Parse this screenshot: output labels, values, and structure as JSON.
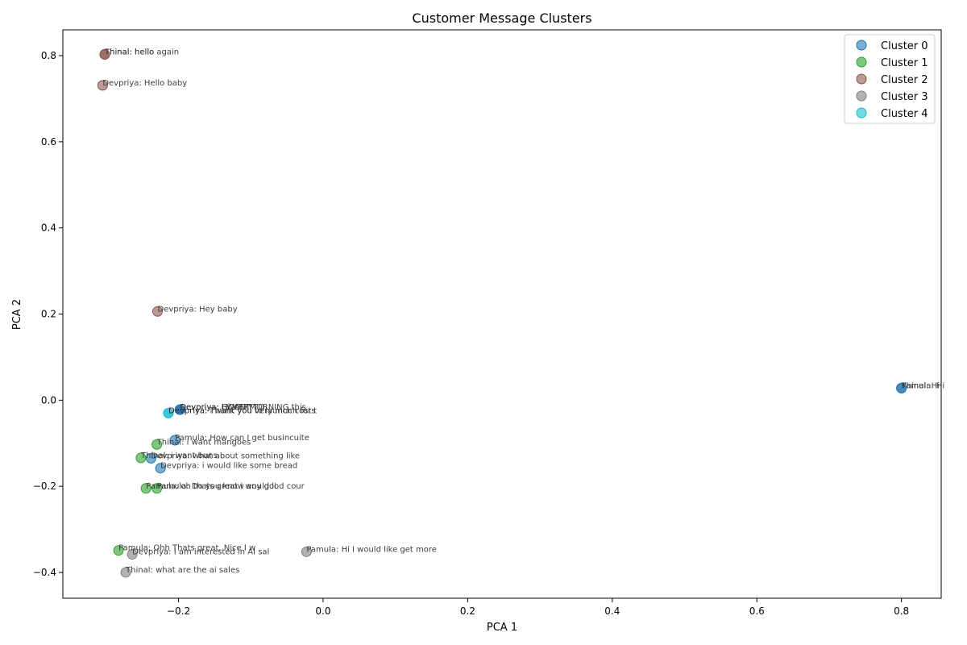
{
  "chart_data": {
    "type": "scatter",
    "title": "Customer Message Clusters",
    "xlabel": "PCA 1",
    "ylabel": "PCA 2",
    "xlim": [
      -0.36,
      0.855
    ],
    "ylim": [
      -0.46,
      0.86
    ],
    "xticks": [
      -0.2,
      0.0,
      0.2,
      0.4,
      0.6,
      0.8
    ],
    "yticks": [
      -0.4,
      -0.2,
      0.0,
      0.2,
      0.4,
      0.6,
      0.8
    ],
    "grid": false,
    "legend_position": "top-right",
    "series": [
      {
        "name": "Cluster 0",
        "color": "#1f77b4",
        "points": [
          {
            "x": -0.198,
            "y": -0.022,
            "label": "Devpriya: I WANT TO"
          },
          {
            "x": -0.198,
            "y": -0.022,
            "label": "Devpriya: GOOD MORNING this"
          },
          {
            "x": -0.198,
            "y": -0.022,
            "label": "Devpriya: Hi VERY"
          },
          {
            "x": -0.205,
            "y": -0.093,
            "label": "Pamula: How can I get busincuite"
          },
          {
            "x": -0.238,
            "y": -0.135,
            "label": "Devpriya: what about something like"
          },
          {
            "x": -0.225,
            "y": -0.158,
            "label": "Devpriya: i would like some bread"
          },
          {
            "x": 0.8,
            "y": 0.028,
            "label": "Thinal: Hi"
          },
          {
            "x": 0.8,
            "y": 0.028,
            "label": "Pamula: Hi"
          }
        ]
      },
      {
        "name": "Cluster 1",
        "color": "#2ca02c",
        "points": [
          {
            "x": -0.23,
            "y": -0.103,
            "label": "Thinal: i want mangoes"
          },
          {
            "x": -0.252,
            "y": -0.134,
            "label": "Thinal: i want buns"
          },
          {
            "x": -0.245,
            "y": -0.205,
            "label": "Pamula: oh thats great i would li"
          },
          {
            "x": -0.23,
            "y": -0.205,
            "label": "Pamula: Do you know any good cour"
          },
          {
            "x": -0.283,
            "y": -0.349,
            "label": "Pamula: Ohh Thats great, Nice I w"
          }
        ]
      },
      {
        "name": "Cluster 2",
        "color": "#8c564b",
        "points": [
          {
            "x": -0.302,
            "y": 0.803,
            "label": "Thinal: hello"
          },
          {
            "x": -0.302,
            "y": 0.803,
            "label": "Thinal: hello again"
          },
          {
            "x": -0.305,
            "y": 0.731,
            "label": "Devpriya: Hello baby"
          },
          {
            "x": -0.229,
            "y": 0.206,
            "label": "Devpriya: Hey baby"
          }
        ]
      },
      {
        "name": "Cluster 3",
        "color": "#7f7f7f",
        "points": [
          {
            "x": -0.264,
            "y": -0.358,
            "label": "Devpriya: I am interested in AI sal"
          },
          {
            "x": -0.273,
            "y": -0.4,
            "label": "Thinal: what are the ai sales"
          },
          {
            "x": -0.023,
            "y": -0.352,
            "label": "Pamula: Hi I would like get more"
          }
        ]
      },
      {
        "name": "Cluster 4",
        "color": "#17becf",
        "points": [
          {
            "x": -0.214,
            "y": -0.03,
            "label": "Devpriya: Thank you very much for t"
          },
          {
            "x": -0.214,
            "y": -0.03,
            "label": "Devpriya: i want you to launch costs"
          }
        ]
      }
    ]
  }
}
